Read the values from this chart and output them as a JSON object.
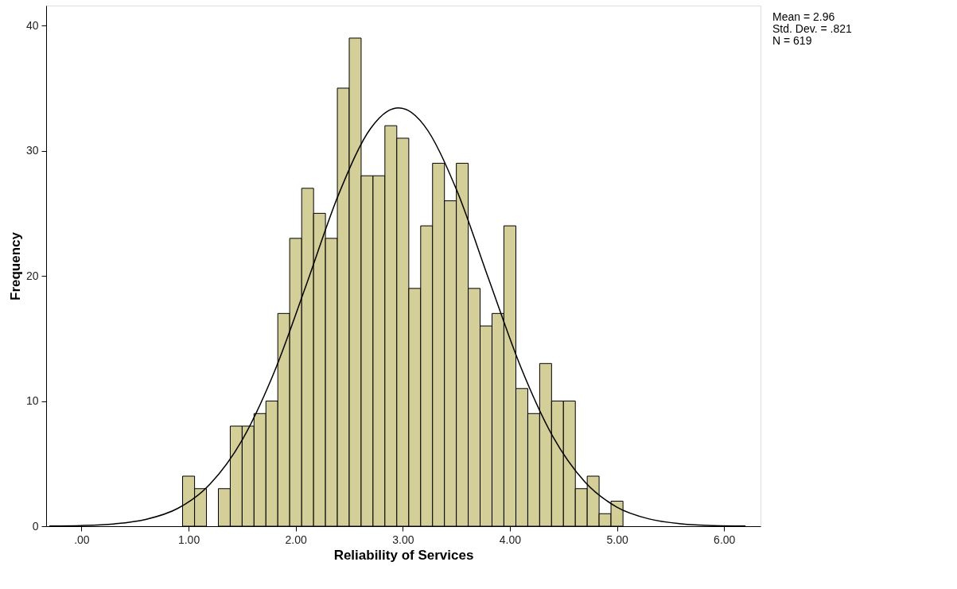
{
  "chart_data": {
    "type": "histogram",
    "xlabel": "Reliability of Services",
    "ylabel": "Frequency",
    "color": "#d4cf98",
    "bins": [
      0.944,
      1.056,
      1.167,
      1.278,
      1.389,
      1.5,
      1.611,
      1.722,
      1.833,
      1.944,
      2.056,
      2.167,
      2.278,
      2.389,
      2.5,
      2.611,
      2.722,
      2.833,
      2.944,
      3.056,
      3.167,
      3.278,
      3.389,
      3.5,
      3.611,
      3.722,
      3.833,
      3.944,
      4.056,
      4.167,
      4.278,
      4.389,
      4.5,
      4.611,
      4.722,
      4.833,
      4.944,
      5.056
    ],
    "values": [
      4,
      3,
      0,
      3,
      8,
      8,
      9,
      10,
      17,
      23,
      27,
      25,
      23,
      35,
      39,
      28,
      28,
      32,
      31,
      19,
      24,
      29,
      26,
      29,
      19,
      16,
      17,
      24,
      11,
      9,
      13,
      10,
      10,
      3,
      4,
      1,
      2
    ],
    "series": [
      {
        "type": "line",
        "color": "#000000",
        "x": [
          -0.3,
          0,
          0.3,
          0.6,
          0.9,
          1.2,
          1.5,
          1.8,
          2.1,
          2.4,
          2.7,
          2.85,
          2.96,
          3.05,
          3.2,
          3.5,
          3.8,
          4.1,
          4.4,
          4.7,
          5.0,
          5.3,
          5.6,
          5.9,
          6.2
        ],
        "values": [
          0.01,
          0.05,
          0.18,
          0.54,
          1.43,
          3.36,
          6.88,
          12.32,
          19.31,
          26.49,
          31.79,
          33.12,
          33.42,
          33.22,
          32.02,
          26.92,
          19.8,
          12.75,
          7.18,
          3.54,
          1.52,
          0.58,
          0.19,
          0.05,
          0.01
        ]
      }
    ],
    "xlim": [
      -0.33,
      6.34
    ],
    "ylim": [
      0,
      41.6
    ],
    "xticks": [
      {
        "value": 0,
        "label": ".00"
      },
      {
        "value": 1,
        "label": "1.00"
      },
      {
        "value": 2,
        "label": "2.00"
      },
      {
        "value": 3,
        "label": "3.00"
      },
      {
        "value": 4,
        "label": "4.00"
      },
      {
        "value": 5,
        "label": "5.00"
      },
      {
        "value": 6,
        "label": "6.00"
      }
    ],
    "yticks": [
      0,
      10,
      20,
      30,
      40
    ],
    "grid": false,
    "annotations": [
      "Mean = 2.96",
      "Std. Dev. = .821",
      "N = 619"
    ]
  }
}
